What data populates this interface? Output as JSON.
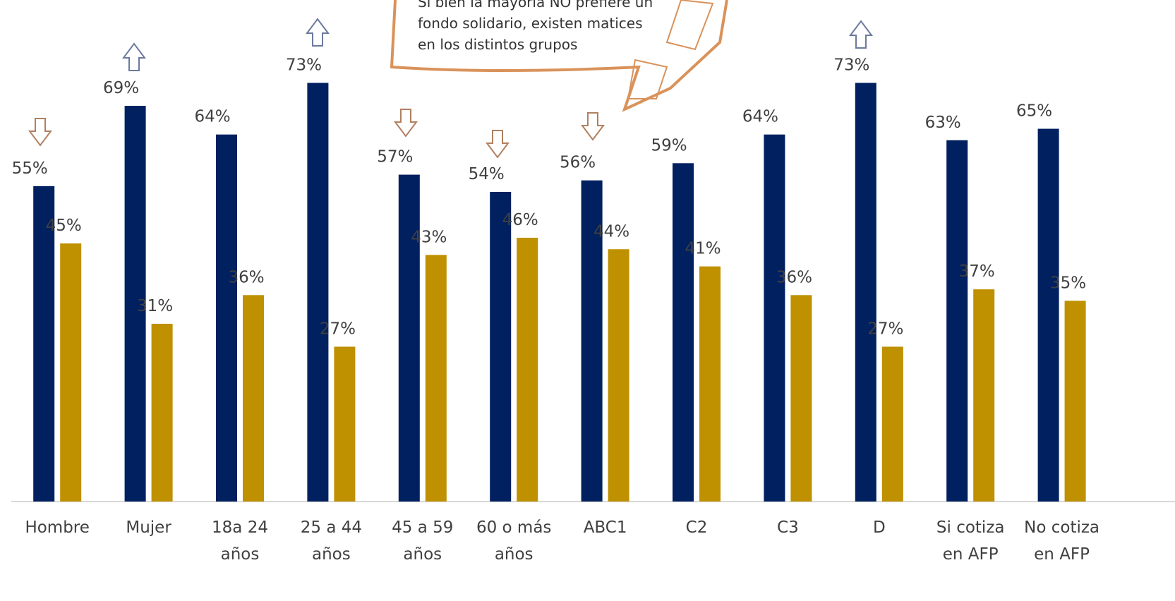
{
  "chart_data": {
    "type": "bar",
    "annotation": "Si bien la mayoría NO prefiere un fondo solidario, existen matices en los distintos grupos",
    "categories": [
      "Hombre",
      "Mujer",
      "18a 24 años",
      "25 a 44 años",
      "45 a 59 años",
      "60 o más años",
      "ABC1",
      "C2",
      "C3",
      "D",
      "Si cotiza en AFP",
      "No cotiza en AFP"
    ],
    "series": [
      {
        "color": "#002060",
        "values": [
          55,
          69,
          64,
          73,
          57,
          54,
          56,
          59,
          64,
          73,
          63,
          65
        ],
        "value_labels": [
          "55%",
          "69%",
          "64%",
          "73%",
          "57%",
          "54%",
          "56%",
          "59%",
          "64%",
          "73%",
          "63%",
          "65%"
        ]
      },
      {
        "color": "#bf9000",
        "values": [
          45,
          31,
          36,
          27,
          43,
          46,
          44,
          41,
          36,
          27,
          37,
          35
        ],
        "value_labels": [
          "45%",
          "31%",
          "36%",
          "27%",
          "43%",
          "46%",
          "44%",
          "41%",
          "36%",
          "27%",
          "37%",
          "35%"
        ]
      }
    ]
  }
}
